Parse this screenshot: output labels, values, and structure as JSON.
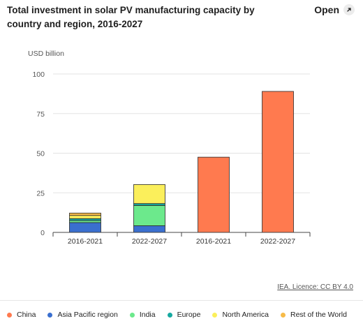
{
  "title": "Total investment in solar PV manufacturing capacity by country and region, 2016-2027",
  "open_label": "Open",
  "open_icon": "external-link-icon",
  "licence_text": "IEA. Licence: CC BY 4.0",
  "colors": {
    "China": "#ff7a4f",
    "Asia Pacific region": "#3a6fcf",
    "India": "#6ce98c",
    "Europe": "#16a9a0",
    "North America": "#fbef5b",
    "Rest of the World": "#f7bb48"
  },
  "chart_data": {
    "type": "bar",
    "stacked": true,
    "ylabel": "USD billion",
    "ylim": [
      0,
      100
    ],
    "yticks": [
      0,
      25,
      50,
      75,
      100
    ],
    "categories": [
      "2016-2021",
      "2022-2027",
      "2016-2021",
      "2022-2027"
    ],
    "grid": true,
    "legend_position": "bottom",
    "series": [
      {
        "name": "China",
        "values": [
          0,
          0,
          47.5,
          89
        ]
      },
      {
        "name": "Asia Pacific region",
        "values": [
          6.2,
          4.2,
          0,
          0
        ]
      },
      {
        "name": "India",
        "values": [
          1.3,
          12.8,
          0,
          0
        ]
      },
      {
        "name": "Europe",
        "values": [
          1.2,
          1.2,
          0,
          0
        ]
      },
      {
        "name": "North America",
        "values": [
          2.0,
          12.0,
          0,
          0
        ]
      },
      {
        "name": "Rest of the World",
        "values": [
          1.5,
          0,
          0,
          0
        ]
      }
    ]
  },
  "legend": [
    {
      "name": "China"
    },
    {
      "name": "Asia Pacific region"
    },
    {
      "name": "India"
    },
    {
      "name": "Europe"
    },
    {
      "name": "North America"
    },
    {
      "name": "Rest of the World"
    }
  ]
}
